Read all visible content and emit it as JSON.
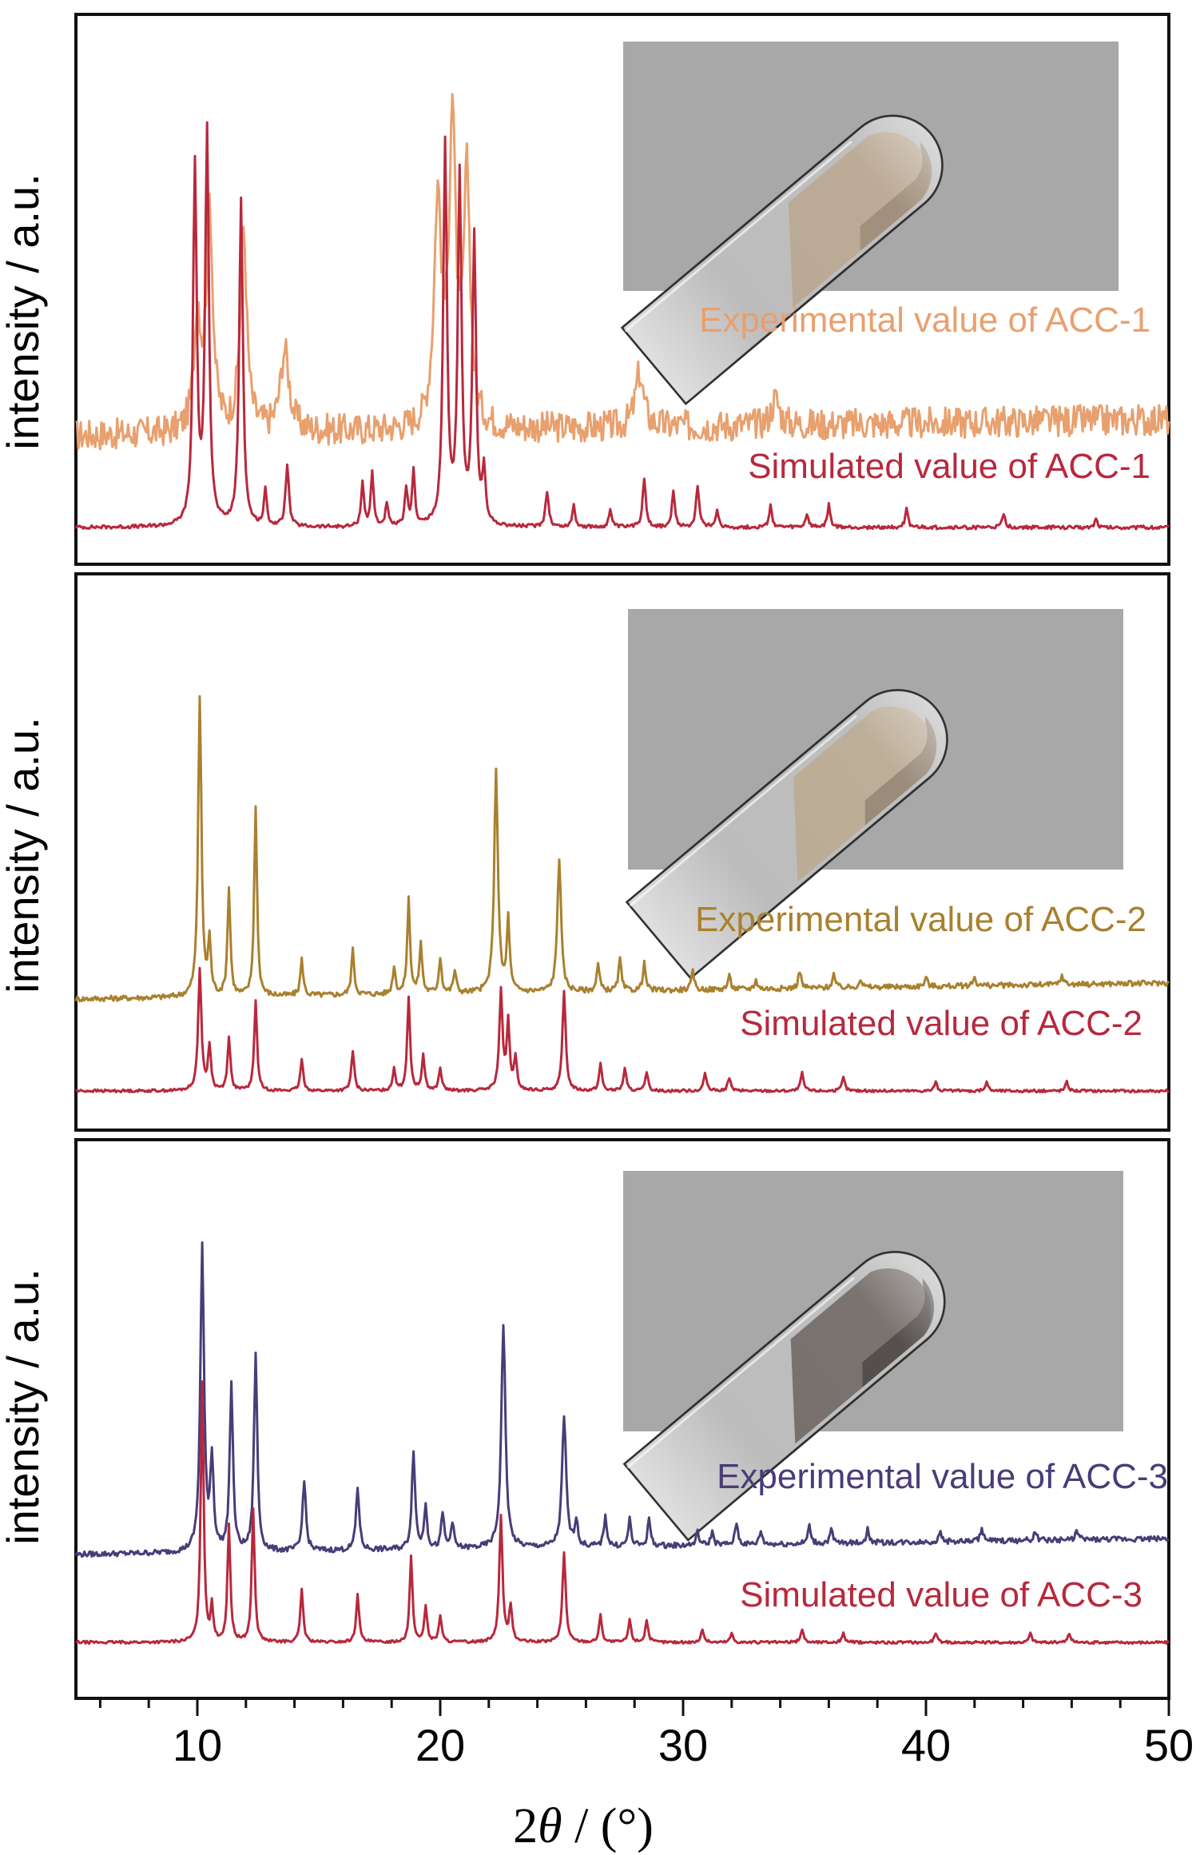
{
  "chart_data": {
    "type": "line",
    "xlabel": "2θ / (°)",
    "xlabel_parts": {
      "pre": "2",
      "theta": "θ",
      "post": " / (°)"
    },
    "xlim": [
      5,
      50
    ],
    "xticks": [
      10,
      20,
      30,
      40,
      50
    ],
    "panels": [
      {
        "id": "ACC-1",
        "ylabel": "intensity / a.u.",
        "inset": {
          "powder_color": "#b6a48e",
          "powder_dark": "#8f7d68"
        },
        "series": [
          {
            "name": "Experimental value of ACC-1",
            "color": "#e8a06e",
            "baseline": 0.3,
            "noise": 0.035,
            "peaks": [
              [
                10.0,
                0.26,
                0.16
              ],
              [
                10.5,
                0.5,
                0.16
              ],
              [
                11.9,
                0.45,
                0.16
              ],
              [
                13.6,
                0.18,
                0.22
              ],
              [
                19.9,
                0.5,
                0.18
              ],
              [
                20.5,
                0.68,
                0.16
              ],
              [
                21.1,
                0.55,
                0.16
              ],
              [
                28.2,
                0.12,
                0.2
              ],
              [
                33.8,
                0.06,
                0.2
              ]
            ]
          },
          {
            "name": "Simulated value of ACC-1",
            "color": "#b8283c",
            "baseline": 0.0,
            "noise": 0.004,
            "peaks": [
              [
                9.9,
                0.8,
                0.09
              ],
              [
                10.4,
                0.88,
                0.09
              ],
              [
                11.8,
                0.73,
                0.09
              ],
              [
                12.8,
                0.08,
                0.07
              ],
              [
                13.7,
                0.14,
                0.08
              ],
              [
                16.8,
                0.1,
                0.07
              ],
              [
                17.2,
                0.12,
                0.07
              ],
              [
                17.8,
                0.05,
                0.07
              ],
              [
                18.6,
                0.08,
                0.07
              ],
              [
                18.9,
                0.12,
                0.07
              ],
              [
                20.2,
                0.85,
                0.09
              ],
              [
                20.8,
                0.78,
                0.09
              ],
              [
                21.4,
                0.64,
                0.09
              ],
              [
                21.8,
                0.12,
                0.07
              ],
              [
                24.4,
                0.08,
                0.08
              ],
              [
                25.5,
                0.05,
                0.07
              ],
              [
                27.0,
                0.04,
                0.07
              ],
              [
                28.4,
                0.11,
                0.08
              ],
              [
                29.6,
                0.08,
                0.07
              ],
              [
                30.6,
                0.09,
                0.08
              ],
              [
                31.4,
                0.04,
                0.07
              ],
              [
                33.6,
                0.05,
                0.07
              ],
              [
                35.1,
                0.03,
                0.07
              ],
              [
                36.0,
                0.05,
                0.07
              ],
              [
                39.2,
                0.04,
                0.07
              ],
              [
                43.2,
                0.03,
                0.07
              ],
              [
                47.0,
                0.02,
                0.07
              ]
            ]
          }
        ]
      },
      {
        "id": "ACC-2",
        "ylabel": "intensity / a.u.",
        "inset": {
          "powder_color": "#b7a78f",
          "powder_dark": "#867664"
        },
        "series": [
          {
            "name": "Experimental value of ACC-2",
            "color": "#a9802e",
            "baseline": 0.3,
            "noise": 0.006,
            "peaks": [
              [
                10.1,
                0.67,
                0.08
              ],
              [
                10.5,
                0.12,
                0.07
              ],
              [
                11.3,
                0.24,
                0.07
              ],
              [
                12.4,
                0.42,
                0.07
              ],
              [
                14.3,
                0.08,
                0.07
              ],
              [
                16.4,
                0.1,
                0.07
              ],
              [
                18.1,
                0.06,
                0.07
              ],
              [
                18.7,
                0.21,
                0.07
              ],
              [
                19.2,
                0.11,
                0.07
              ],
              [
                20.0,
                0.08,
                0.07
              ],
              [
                20.6,
                0.05,
                0.07
              ],
              [
                22.3,
                0.5,
                0.09
              ],
              [
                22.8,
                0.16,
                0.07
              ],
              [
                24.9,
                0.3,
                0.09
              ],
              [
                26.5,
                0.06,
                0.07
              ],
              [
                27.4,
                0.07,
                0.07
              ],
              [
                28.4,
                0.06,
                0.07
              ],
              [
                30.4,
                0.04,
                0.07
              ],
              [
                31.9,
                0.03,
                0.07
              ],
              [
                33.0,
                0.02,
                0.07
              ],
              [
                34.8,
                0.04,
                0.07
              ],
              [
                36.2,
                0.03,
                0.07
              ],
              [
                37.3,
                0.02,
                0.07
              ],
              [
                40.0,
                0.02,
                0.07
              ],
              [
                42.0,
                0.02,
                0.07
              ],
              [
                45.6,
                0.02,
                0.07
              ]
            ]
          },
          {
            "name": "Simulated value of ACC-2",
            "color": "#b8283c",
            "baseline": 0.0,
            "noise": 0.003,
            "peaks": [
              [
                10.1,
                0.27,
                0.08
              ],
              [
                10.5,
                0.1,
                0.07
              ],
              [
                11.3,
                0.12,
                0.07
              ],
              [
                12.4,
                0.2,
                0.07
              ],
              [
                14.3,
                0.07,
                0.07
              ],
              [
                16.4,
                0.09,
                0.07
              ],
              [
                18.1,
                0.05,
                0.07
              ],
              [
                18.7,
                0.21,
                0.07
              ],
              [
                19.3,
                0.08,
                0.07
              ],
              [
                20.0,
                0.05,
                0.07
              ],
              [
                22.5,
                0.22,
                0.08
              ],
              [
                22.8,
                0.15,
                0.07
              ],
              [
                23.1,
                0.07,
                0.07
              ],
              [
                25.1,
                0.22,
                0.08
              ],
              [
                26.6,
                0.06,
                0.07
              ],
              [
                27.6,
                0.05,
                0.07
              ],
              [
                28.5,
                0.04,
                0.07
              ],
              [
                30.9,
                0.04,
                0.07
              ],
              [
                31.9,
                0.03,
                0.07
              ],
              [
                34.9,
                0.04,
                0.07
              ],
              [
                36.6,
                0.03,
                0.07
              ],
              [
                40.4,
                0.02,
                0.07
              ],
              [
                42.5,
                0.02,
                0.07
              ],
              [
                45.8,
                0.02,
                0.07
              ]
            ]
          }
        ]
      },
      {
        "id": "ACC-3",
        "ylabel": "intensity / a.u.",
        "inset": {
          "powder_color": "#6f6864",
          "powder_dark": "#3a3431"
        },
        "series": [
          {
            "name": "Experimental value of ACC-3",
            "color": "#4a3c78",
            "baseline": 0.3,
            "noise": 0.006,
            "peaks": [
              [
                10.2,
                0.68,
                0.09
              ],
              [
                10.6,
                0.2,
                0.08
              ],
              [
                11.4,
                0.37,
                0.08
              ],
              [
                12.4,
                0.44,
                0.08
              ],
              [
                14.4,
                0.16,
                0.08
              ],
              [
                16.6,
                0.14,
                0.08
              ],
              [
                18.9,
                0.22,
                0.08
              ],
              [
                19.4,
                0.1,
                0.07
              ],
              [
                20.1,
                0.08,
                0.07
              ],
              [
                20.5,
                0.06,
                0.07
              ],
              [
                22.6,
                0.5,
                0.1
              ],
              [
                25.1,
                0.29,
                0.1
              ],
              [
                25.6,
                0.06,
                0.07
              ],
              [
                26.8,
                0.07,
                0.07
              ],
              [
                27.8,
                0.06,
                0.07
              ],
              [
                28.6,
                0.06,
                0.07
              ],
              [
                30.6,
                0.03,
                0.07
              ],
              [
                31.2,
                0.03,
                0.07
              ],
              [
                32.2,
                0.05,
                0.07
              ],
              [
                33.2,
                0.03,
                0.07
              ],
              [
                35.2,
                0.04,
                0.07
              ],
              [
                36.1,
                0.03,
                0.07
              ],
              [
                37.6,
                0.03,
                0.07
              ],
              [
                40.6,
                0.02,
                0.07
              ],
              [
                42.3,
                0.03,
                0.07
              ],
              [
                44.5,
                0.02,
                0.07
              ],
              [
                46.2,
                0.02,
                0.07
              ]
            ]
          },
          {
            "name": "Simulated value of ACC-3",
            "color": "#b8283c",
            "baseline": 0.0,
            "noise": 0.003,
            "peaks": [
              [
                10.2,
                0.58,
                0.07
              ],
              [
                10.6,
                0.08,
                0.06
              ],
              [
                11.3,
                0.26,
                0.07
              ],
              [
                12.3,
                0.3,
                0.07
              ],
              [
                14.3,
                0.12,
                0.07
              ],
              [
                16.6,
                0.11,
                0.07
              ],
              [
                18.8,
                0.19,
                0.07
              ],
              [
                19.4,
                0.08,
                0.07
              ],
              [
                20.0,
                0.06,
                0.07
              ],
              [
                22.5,
                0.28,
                0.08
              ],
              [
                22.9,
                0.08,
                0.07
              ],
              [
                25.1,
                0.2,
                0.08
              ],
              [
                26.6,
                0.06,
                0.07
              ],
              [
                27.8,
                0.05,
                0.07
              ],
              [
                28.5,
                0.05,
                0.07
              ],
              [
                30.8,
                0.03,
                0.07
              ],
              [
                32.0,
                0.02,
                0.07
              ],
              [
                34.9,
                0.03,
                0.07
              ],
              [
                36.6,
                0.02,
                0.07
              ],
              [
                40.4,
                0.02,
                0.07
              ],
              [
                44.3,
                0.02,
                0.07
              ],
              [
                45.9,
                0.02,
                0.07
              ]
            ]
          }
        ]
      }
    ]
  }
}
